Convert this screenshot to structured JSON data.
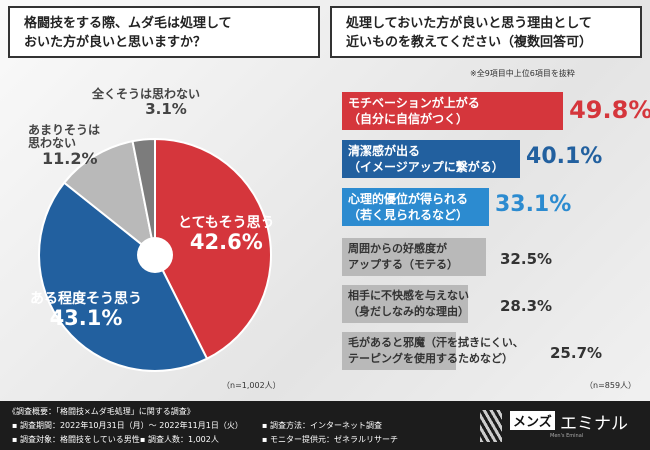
{
  "left": {
    "title_line1": "格闘技をする際、ムダ毛は処理して",
    "title_line2": "おいた方が良いと思いますか？",
    "n": "（n=1,002人）"
  },
  "right": {
    "title_line1": "処理しておいた方が良いと思う理由として",
    "title_line2": "近いものを教えてください（複数回答可）",
    "note": "※全9項目中上位6項目を抜粋",
    "n": "（n=859人）"
  },
  "chart_data": [
    {
      "type": "pie",
      "slices": [
        {
          "label": "とてもそう思う",
          "value": 42.6,
          "display": "42.6%",
          "color": "#d5363c"
        },
        {
          "label": "ある程度そう思う",
          "value": 43.1,
          "display": "43.1%",
          "color": "#22609f"
        },
        {
          "label": "あまりそうは思わない",
          "value": 11.2,
          "display": "11.2%",
          "color": "#b9b9b9"
        },
        {
          "label": "全くそうは思わない",
          "value": 3.1,
          "display": "3.1%",
          "color": "#7c7c7c"
        }
      ]
    },
    {
      "type": "bar",
      "orientation": "horizontal",
      "items": [
        {
          "line1": "モチベーションが上がる",
          "line2": "（自分に自信がつく）",
          "value": 49.8,
          "display": "49.8%",
          "color": "#d5363c"
        },
        {
          "line1": "清潔感が出る",
          "line2": "（イメージアップに繋がる）",
          "value": 40.1,
          "display": "40.1%",
          "color": "#22609f"
        },
        {
          "line1": "心理的優位が得られる",
          "line2": "（若く見られるなど）",
          "value": 33.1,
          "display": "33.1%",
          "color": "#2c8bd0"
        },
        {
          "line1": "周囲からの好感度が",
          "line2": "アップする（モテる）",
          "value": 32.5,
          "display": "32.5%",
          "color": "#b9b9b9"
        },
        {
          "line1": "相手に不快感を与えない",
          "line2": "（身だしなみ的な理由）",
          "value": 28.3,
          "display": "28.3%",
          "color": "#b9b9b9"
        },
        {
          "line1": "毛があると邪魔（汗を拭きにくい、",
          "line2": "テーピングを使用するためなど）",
          "value": 25.7,
          "display": "25.7%",
          "color": "#b9b9b9"
        }
      ]
    }
  ],
  "footer": {
    "title": "《調査概要：「格闘技×ムダ毛処理」に関する調査》",
    "period": "▪ 調査期間：2022年10月31日（月）～ 2022年11月1日（火）",
    "method": "▪ 調査方法：インターネット調査",
    "target": "▪ 調査対象：格闘技をしている男性",
    "count": "▪ 調査人数：1,002人",
    "provider": "▪ モニター提供元：ゼネラルリサーチ",
    "logo_a": "メンズ",
    "logo_b": "エミナル",
    "logo_sub": "Men's Eminal"
  }
}
